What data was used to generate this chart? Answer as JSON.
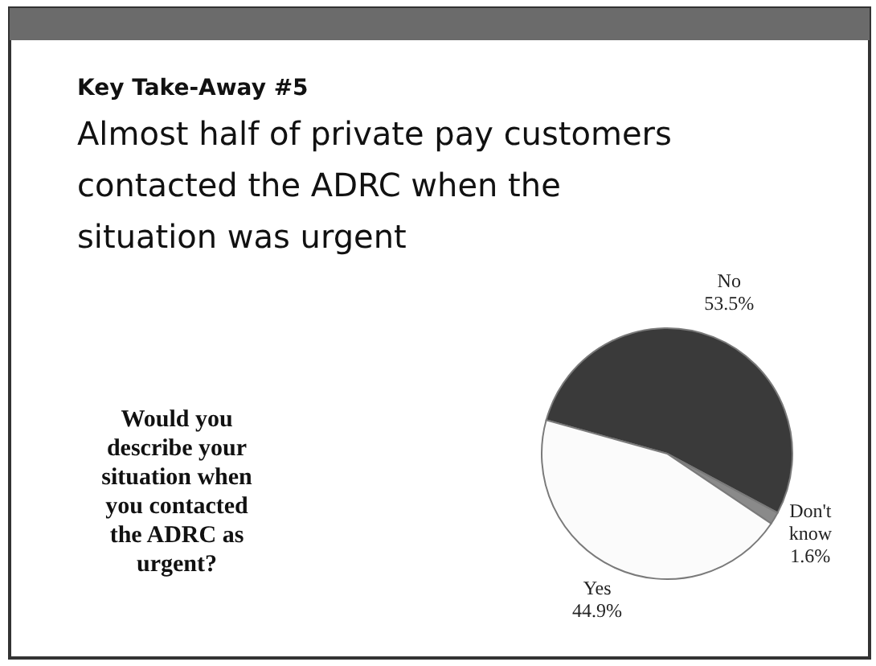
{
  "chart_data": {
    "type": "pie",
    "subtitle": "Key Take-Away #5",
    "title": "Almost half of private pay customers contacted the ADRC when the situation was urgent",
    "annotations": [
      "Would you describe your situation when you contacted the ADRC as urgent?"
    ],
    "categories": [
      "No",
      "Don't know",
      "Yes"
    ],
    "values": [
      53.5,
      1.6,
      44.9
    ],
    "value_labels": [
      "53.5%",
      "1.6%",
      "44.9%"
    ],
    "colors": [
      "#3a3a3a",
      "#8a8a8a",
      "#fbfbfb"
    ]
  }
}
